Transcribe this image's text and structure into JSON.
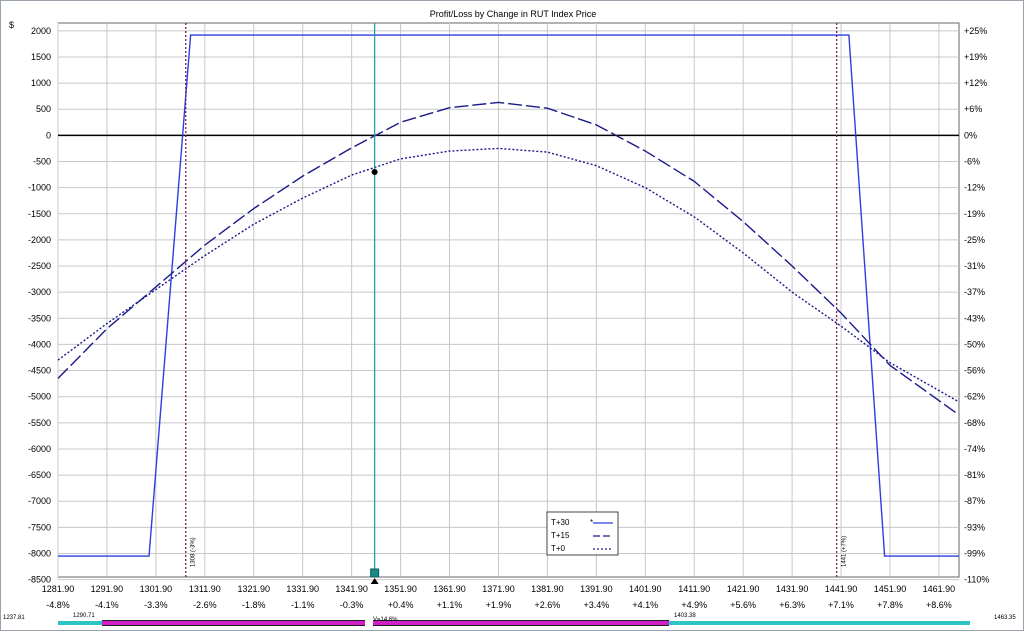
{
  "chart_data": {
    "type": "line",
    "title": "Profit/Loss by Change in RUT Index Price",
    "ylabel_left": "$",
    "xlim": [
      1281.9,
      1466.0
    ],
    "ylim": [
      -8450,
      2150
    ],
    "x_ticks": [
      {
        "price": "1281.90",
        "pct": "-4.8%"
      },
      {
        "price": "1291.90",
        "pct": "-4.1%"
      },
      {
        "price": "1301.90",
        "pct": "-3.3%"
      },
      {
        "price": "1311.90",
        "pct": "-2.6%"
      },
      {
        "price": "1321.90",
        "pct": "-1.8%"
      },
      {
        "price": "1331.90",
        "pct": "-1.1%"
      },
      {
        "price": "1341.90",
        "pct": "-0.3%"
      },
      {
        "price": "1351.90",
        "pct": "+0.4%"
      },
      {
        "price": "1361.90",
        "pct": "+1.1%"
      },
      {
        "price": "1371.90",
        "pct": "+1.9%"
      },
      {
        "price": "1381.90",
        "pct": "+2.6%"
      },
      {
        "price": "1391.90",
        "pct": "+3.4%"
      },
      {
        "price": "1401.90",
        "pct": "+4.1%"
      },
      {
        "price": "1411.90",
        "pct": "+4.9%"
      },
      {
        "price": "1421.90",
        "pct": "+5.6%"
      },
      {
        "price": "1431.90",
        "pct": "+6.3%"
      },
      {
        "price": "1441.90",
        "pct": "+7.1%"
      },
      {
        "price": "1451.90",
        "pct": "+7.8%"
      },
      {
        "price": "1461.90",
        "pct": "+8.6%"
      }
    ],
    "y_ticks_left": [
      2000,
      1500,
      1000,
      500,
      0,
      -500,
      -1000,
      -1500,
      -2000,
      -2500,
      -3000,
      -3500,
      -4000,
      -4500,
      -5000,
      -5500,
      -6000,
      -6500,
      -7000,
      -7500,
      -8000,
      -8500
    ],
    "y_ticks_right": [
      "+25%",
      "+19%",
      "+12%",
      "+6%",
      "0%",
      "-6%",
      "-12%",
      "-19%",
      "-25%",
      "-31%",
      "-37%",
      "-43%",
      "-50%",
      "-56%",
      "-62%",
      "-68%",
      "-74%",
      "-81%",
      "-87%",
      "-93%",
      "-99%",
      "-110%"
    ],
    "series": [
      {
        "name": "T+30",
        "style": "solid",
        "color": "#2b3fe0",
        "x": [
          1281.9,
          1300.5,
          1309.0,
          1443.5,
          1450.8,
          1466.0
        ],
        "y": [
          -8050,
          -8050,
          1920,
          1920,
          -8050,
          -8050
        ]
      },
      {
        "name": "T+15",
        "style": "dashed",
        "color": "#1a1a8a",
        "x": [
          1281.9,
          1291.9,
          1301.9,
          1311.9,
          1321.9,
          1331.9,
          1341.9,
          1351.9,
          1361.9,
          1371.9,
          1381.9,
          1391.9,
          1401.9,
          1411.9,
          1421.9,
          1431.9,
          1441.9,
          1451.9,
          1466.0
        ],
        "y": [
          -4650,
          -3700,
          -2900,
          -2100,
          -1400,
          -780,
          -240,
          250,
          530,
          630,
          520,
          200,
          -300,
          -880,
          -1650,
          -2500,
          -3400,
          -4400,
          -5350
        ]
      },
      {
        "name": "T+0",
        "style": "dotted",
        "color": "#1a1a8a",
        "x": [
          1281.9,
          1291.9,
          1301.9,
          1311.9,
          1321.9,
          1331.9,
          1341.9,
          1351.9,
          1361.9,
          1371.9,
          1381.9,
          1391.9,
          1401.9,
          1411.9,
          1421.9,
          1431.9,
          1441.9,
          1451.9,
          1466.0
        ],
        "y": [
          -4300,
          -3600,
          -2950,
          -2300,
          -1700,
          -1200,
          -760,
          -450,
          -300,
          -250,
          -320,
          -580,
          -1000,
          -1560,
          -2250,
          -3000,
          -3650,
          -4350,
          -5100
        ]
      }
    ],
    "breakeven_lines": [
      {
        "x": 1308.0,
        "label": "1308 (-3%)"
      },
      {
        "x": 1441.0,
        "label": "1441 (+7%)"
      }
    ],
    "current_price_line": {
      "x": 1346.6
    },
    "current_point": {
      "x": 1346.6,
      "y": -700
    },
    "legend_position": "bottom-center",
    "grid": true
  },
  "scrollbar": {
    "left_label": "1237.81",
    "left_inner_label": "1290.71",
    "center_label": "V=14.6%",
    "right_inner_label": "1403.38",
    "right_label": "1463.35",
    "colors": {
      "outer": "#2ec4c4",
      "inner": "#d020c8"
    }
  }
}
